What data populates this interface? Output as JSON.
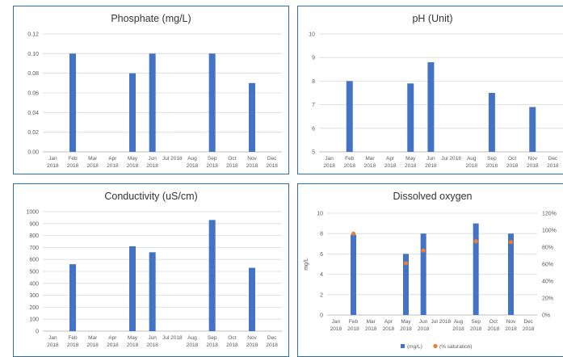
{
  "colors": {
    "bar": "#4472c4",
    "dot": "#ed7d31",
    "grid": "#d9d9d9",
    "axis": "#bfbfbf",
    "border": "#2f6fa8",
    "text": "#595959"
  },
  "months": [
    "Jan\n2018",
    "Feb\n2018",
    "Mar\n2018",
    "Apr\n2018",
    "May\n2018",
    "Jun\n2018",
    "Jul 2018",
    "Aug\n2018",
    "Sep\n2018",
    "Oct\n2018",
    "Nov\n2018",
    "Dec\n2018"
  ],
  "chart_data": [
    {
      "type": "bar",
      "title": "Phosphate (mg/L)",
      "categories": [
        "Jan 2018",
        "Feb 2018",
        "Mar 2018",
        "Apr 2018",
        "May 2018",
        "Jun 2018",
        "Jul 2018",
        "Aug 2018",
        "Sep 2018",
        "Oct 2018",
        "Nov 2018",
        "Dec 2018"
      ],
      "values": [
        null,
        0.1,
        null,
        null,
        0.08,
        0.1,
        null,
        null,
        0.1,
        null,
        0.07,
        null
      ],
      "ylim": [
        0,
        0.12
      ],
      "yticks": [
        "0.00",
        "0.02",
        "0.04",
        "0.06",
        "0.08",
        "0.10",
        "0.12"
      ],
      "grid": true
    },
    {
      "type": "bar",
      "title": "pH (Unit)",
      "categories": [
        "Jan 2018",
        "Feb 2018",
        "Mar 2018",
        "Apr 2018",
        "May 2018",
        "Jun 2018",
        "Jul 2018",
        "Aug 2018",
        "Sep 2018",
        "Oct 2018",
        "Nov 2018",
        "Dec 2018"
      ],
      "values": [
        null,
        8.0,
        null,
        null,
        7.9,
        8.8,
        null,
        null,
        7.5,
        null,
        6.9,
        null
      ],
      "ylim": [
        5,
        10
      ],
      "yticks": [
        "5",
        "6",
        "7",
        "8",
        "9",
        "10"
      ],
      "grid": true
    },
    {
      "type": "bar",
      "title": "Conductivity (uS/cm)",
      "categories": [
        "Jan 2018",
        "Feb 2018",
        "Mar 2018",
        "Apr 2018",
        "May 2018",
        "Jun 2018",
        "Jul 2018",
        "Aug 2018",
        "Sep 2018",
        "Oct 2018",
        "Nov 2018",
        "Dec 2018"
      ],
      "values": [
        null,
        560,
        null,
        null,
        710,
        660,
        null,
        null,
        930,
        null,
        530,
        null
      ],
      "ylim": [
        0,
        1000
      ],
      "yticks": [
        "0",
        "100",
        "200",
        "300",
        "400",
        "500",
        "600",
        "700",
        "800",
        "900",
        "1000"
      ],
      "grid": true
    },
    {
      "type": "bar",
      "title": "Dissolved oxygen",
      "categories": [
        "Jan 2018",
        "Feb 2018",
        "Mar 2018",
        "Apr 2018",
        "May 2018",
        "Jun 2018",
        "Jul 2018",
        "Aug 2018",
        "Sep 2018",
        "Oct 2018",
        "Nov 2018",
        "Dec 2018"
      ],
      "ylabel": "mg/L",
      "ylim": [
        0,
        10
      ],
      "yticks": [
        "0",
        "2",
        "4",
        "6",
        "8",
        "10"
      ],
      "y2lim": [
        0,
        120
      ],
      "y2ticks": [
        "0%",
        "20%",
        "40%",
        "60%",
        "80%",
        "100%",
        "120%"
      ],
      "grid": true,
      "legend": "bottom",
      "series": [
        {
          "name": "(mg/L)",
          "kind": "bar",
          "values": [
            null,
            7.9,
            null,
            null,
            6.0,
            8.0,
            null,
            null,
            9.0,
            null,
            8.0,
            null
          ]
        },
        {
          "name": "(% saturation)",
          "kind": "scatter",
          "axis": "secondary",
          "values": [
            null,
            96,
            null,
            null,
            61,
            76,
            null,
            null,
            87,
            null,
            86,
            null
          ]
        }
      ]
    }
  ]
}
